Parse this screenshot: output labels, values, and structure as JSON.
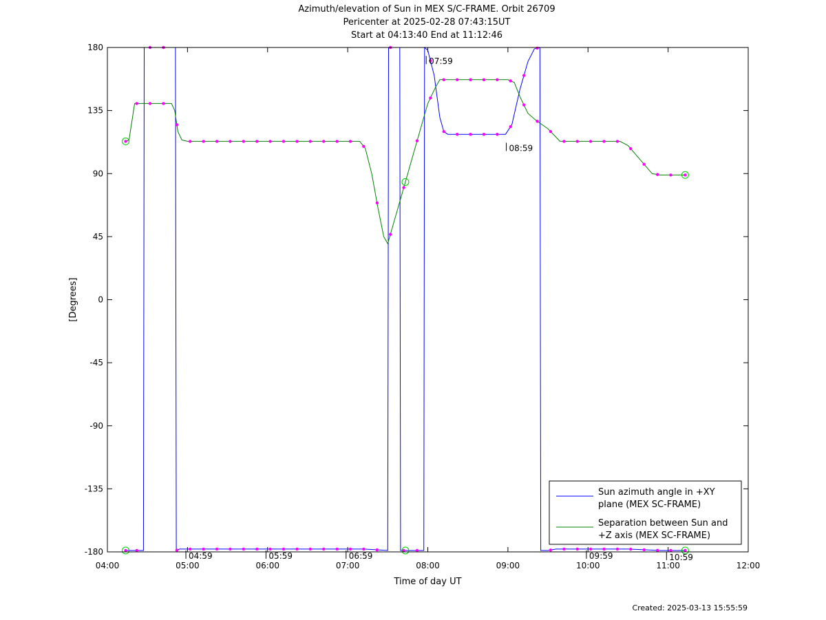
{
  "header": {
    "title": "Azimuth/elevation of Sun in MEX S/C-FRAME.  Orbit 26709",
    "subtitle": "Pericenter at 2025-02-28 07:43:15UT",
    "range": "Start at 04:13:40 End at 11:12:46"
  },
  "footer": {
    "created": "Created: 2025-03-13 15:55:59"
  },
  "chart_data": {
    "type": "line",
    "xlabel": "Time of day UT",
    "ylabel": "[Degrees]",
    "xlim": [
      4,
      12
    ],
    "ylim": [
      -180,
      180
    ],
    "x_ticks": [
      4,
      5,
      6,
      7,
      8,
      9,
      10,
      11,
      12
    ],
    "x_tick_labels": [
      "04:00",
      "05:00",
      "06:00",
      "07:00",
      "08:00",
      "09:00",
      "10:00",
      "11:00",
      "12:00"
    ],
    "y_ticks": [
      180,
      135,
      90,
      45,
      0,
      -45,
      -90,
      -135,
      -180
    ],
    "y_tick_labels": [
      "180",
      "135",
      "90",
      "45",
      "0",
      "-45",
      "-90",
      "-135",
      "-180"
    ],
    "legend_position": "bottom-right",
    "colors": {
      "azimuth": "#0000ff",
      "separation": "#008000",
      "markers": "#ff00ff",
      "endpoints": "#00cc00"
    },
    "series": [
      {
        "key": "azimuth",
        "name": "Sun azimuth angle in +XY plane (MEX SC-FRAME)",
        "legend_lines": [
          "Sun azimuth angle in +XY",
          "plane (MEX SC-FRAME)"
        ],
        "color": "#0000ff",
        "points": [
          [
            4.228,
            -179
          ],
          [
            4.4,
            -179
          ],
          [
            4.45,
            -179
          ],
          [
            4.46,
            180
          ],
          [
            4.55,
            180
          ],
          [
            4.7,
            180
          ],
          [
            4.85,
            180
          ],
          [
            4.86,
            -179
          ],
          [
            4.9,
            -178
          ],
          [
            5.5,
            -178
          ],
          [
            6.0,
            -178
          ],
          [
            6.5,
            -178
          ],
          [
            7.0,
            -178
          ],
          [
            7.2,
            -178
          ],
          [
            7.35,
            -178.5
          ],
          [
            7.5,
            -179
          ],
          [
            7.51,
            180
          ],
          [
            7.65,
            180
          ],
          [
            7.66,
            -179
          ],
          [
            7.8,
            -179
          ],
          [
            7.95,
            -179
          ],
          [
            7.96,
            180
          ],
          [
            8.0,
            178
          ],
          [
            8.08,
            160
          ],
          [
            8.15,
            130
          ],
          [
            8.2,
            120
          ],
          [
            8.25,
            118
          ],
          [
            8.5,
            118
          ],
          [
            8.8,
            118
          ],
          [
            8.97,
            118
          ],
          [
            9.05,
            125
          ],
          [
            9.15,
            150
          ],
          [
            9.25,
            170
          ],
          [
            9.33,
            179
          ],
          [
            9.4,
            180
          ],
          [
            9.41,
            -179
          ],
          [
            9.5,
            -179
          ],
          [
            9.6,
            -178
          ],
          [
            9.8,
            -178
          ],
          [
            10.0,
            -178
          ],
          [
            10.2,
            -178
          ],
          [
            10.4,
            -178
          ],
          [
            10.5,
            -178
          ],
          [
            10.7,
            -178.5
          ],
          [
            10.9,
            -179
          ],
          [
            11.1,
            -179
          ],
          [
            11.213,
            -179
          ]
        ]
      },
      {
        "key": "separation",
        "name": "Separation between Sun and +Z axis (MEX SC-FRAME)",
        "legend_lines": [
          "Separation between Sun and",
          "+Z axis (MEX SC-FRAME)"
        ],
        "color": "#008000",
        "points": [
          [
            4.228,
            113
          ],
          [
            4.27,
            114
          ],
          [
            4.3,
            125
          ],
          [
            4.34,
            140
          ],
          [
            4.5,
            140
          ],
          [
            4.7,
            140
          ],
          [
            4.8,
            140
          ],
          [
            4.84,
            135
          ],
          [
            4.88,
            120
          ],
          [
            4.93,
            114
          ],
          [
            5.0,
            113
          ],
          [
            5.5,
            113
          ],
          [
            6.0,
            113
          ],
          [
            6.5,
            113
          ],
          [
            7.0,
            113
          ],
          [
            7.15,
            113
          ],
          [
            7.22,
            108
          ],
          [
            7.3,
            90
          ],
          [
            7.38,
            65
          ],
          [
            7.45,
            45
          ],
          [
            7.5,
            40
          ],
          [
            7.55,
            50
          ],
          [
            7.65,
            70
          ],
          [
            7.75,
            90
          ],
          [
            7.85,
            110
          ],
          [
            8.0,
            140
          ],
          [
            8.1,
            152
          ],
          [
            8.15,
            157
          ],
          [
            8.2,
            157
          ],
          [
            8.5,
            157
          ],
          [
            8.9,
            157
          ],
          [
            9.0,
            157
          ],
          [
            9.08,
            155
          ],
          [
            9.15,
            145
          ],
          [
            9.25,
            133
          ],
          [
            9.35,
            128
          ],
          [
            9.5,
            122
          ],
          [
            9.65,
            113
          ],
          [
            9.8,
            113
          ],
          [
            10.0,
            113
          ],
          [
            10.2,
            113
          ],
          [
            10.4,
            113
          ],
          [
            10.5,
            110
          ],
          [
            10.65,
            100
          ],
          [
            10.8,
            90
          ],
          [
            10.9,
            89
          ],
          [
            11.1,
            89
          ],
          [
            11.213,
            89
          ]
        ]
      }
    ],
    "annotations": [
      {
        "label": "07:59",
        "x": 7.98,
        "y": 175
      },
      {
        "label": "08:59",
        "x": 8.98,
        "y": 113
      },
      {
        "label": "04:59",
        "x": 4.98,
        "y": -178
      },
      {
        "label": "05:59",
        "x": 5.98,
        "y": -178
      },
      {
        "label": "06:59",
        "x": 6.98,
        "y": -178
      },
      {
        "label": "09:59",
        "x": 9.98,
        "y": -178
      },
      {
        "label": "10:59",
        "x": 10.98,
        "y": -179
      }
    ],
    "marker_times": [
      4.228,
      4.367,
      4.533,
      4.7,
      4.867,
      5.033,
      5.2,
      5.367,
      5.533,
      5.7,
      5.867,
      6.033,
      6.2,
      6.367,
      6.533,
      6.7,
      6.867,
      7.033,
      7.2,
      7.367,
      7.533,
      7.7,
      7.867,
      8.033,
      8.2,
      8.367,
      8.533,
      8.7,
      8.867,
      9.033,
      9.2,
      9.367,
      9.533,
      9.7,
      9.867,
      10.033,
      10.2,
      10.367,
      10.533,
      10.7,
      10.867,
      11.033,
      11.213
    ],
    "endpoint_times": [
      4.228,
      7.72,
      11.213
    ]
  }
}
